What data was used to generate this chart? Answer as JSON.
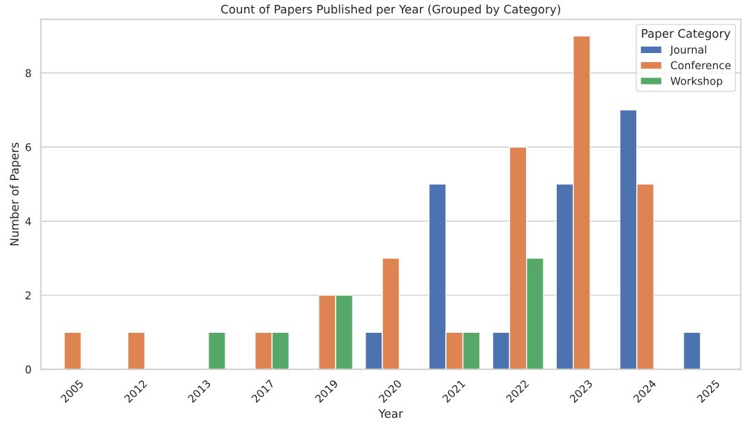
{
  "chart_data": {
    "type": "bar",
    "title": "Count of Papers Published per Year (Grouped by Category)",
    "xlabel": "Year",
    "ylabel": "Number of Papers",
    "legend_title": "Paper Category",
    "categories": [
      "2005",
      "2012",
      "2013",
      "2017",
      "2019",
      "2020",
      "2021",
      "2022",
      "2023",
      "2024",
      "2025"
    ],
    "series": [
      {
        "name": "Journal",
        "color": "#4c72b0",
        "values": [
          null,
          null,
          null,
          null,
          null,
          1,
          5,
          1,
          5,
          7,
          1
        ]
      },
      {
        "name": "Conference",
        "color": "#dd8452",
        "values": [
          1,
          1,
          null,
          1,
          2,
          3,
          1,
          6,
          9,
          5,
          null
        ]
      },
      {
        "name": "Workshop",
        "color": "#55a868",
        "values": [
          null,
          null,
          1,
          1,
          2,
          null,
          1,
          3,
          null,
          null,
          null
        ]
      }
    ],
    "ylim": [
      0,
      9.45
    ],
    "yticks": [
      0,
      2,
      4,
      6,
      8
    ],
    "grid": "y",
    "legend": "top right"
  }
}
